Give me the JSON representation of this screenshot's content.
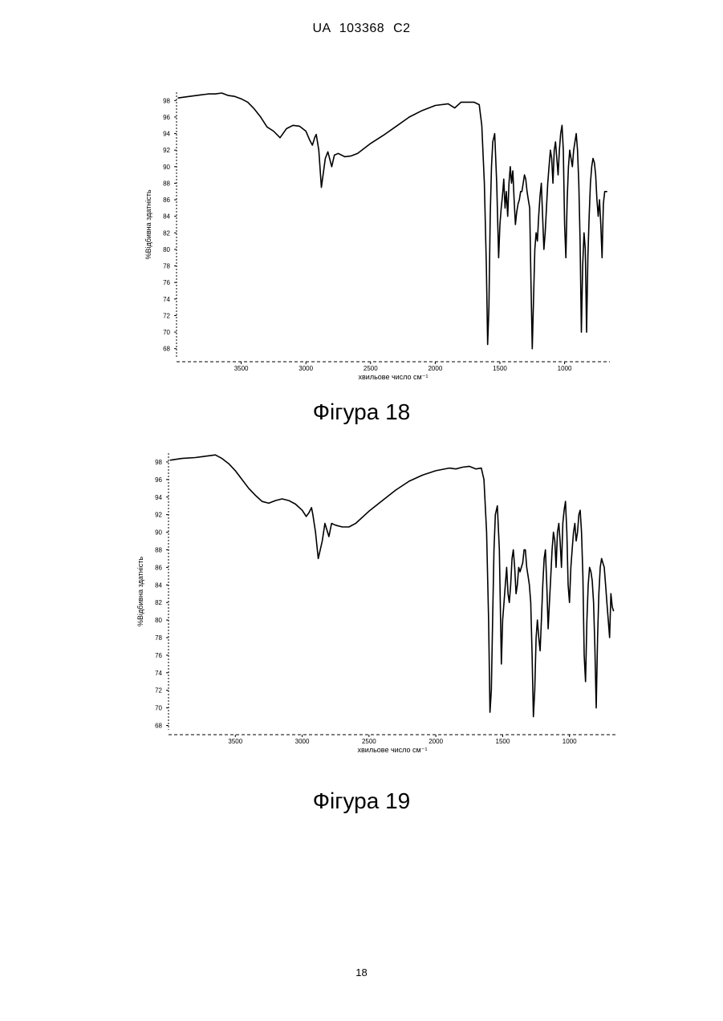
{
  "header": "UA 103368 C2",
  "page_number": "18",
  "figures": [
    {
      "caption": "Фігура 18"
    },
    {
      "caption": "Фігура 19"
    }
  ],
  "chart_data": [
    {
      "type": "line",
      "title": "",
      "xlabel": "хвильове число см⁻¹",
      "ylabel": "%Відбивна здатність",
      "xlim": [
        4000,
        650
      ],
      "ylim": [
        67,
        99
      ],
      "xticks": [
        3500,
        3000,
        2500,
        2000,
        1500,
        1000
      ],
      "yticks": [
        98,
        96,
        94,
        92,
        90,
        88,
        86,
        84,
        82,
        80,
        78,
        76,
        74,
        72,
        70,
        68
      ],
      "ytick_labels": [
        "98",
        "96",
        "94",
        "92",
        "90",
        "88",
        "86",
        "84",
        "82",
        "80",
        "78",
        "76",
        "74",
        "72",
        "70",
        "68"
      ],
      "grid": false,
      "series": [
        {
          "x": [
            3990,
            3900,
            3800,
            3750,
            3700,
            3650,
            3600,
            3550,
            3500,
            3450,
            3400,
            3350,
            3300,
            3250,
            3200,
            3150,
            3100,
            3050,
            3000,
            2970,
            2950,
            2930,
            2920,
            2900,
            2880,
            2850,
            2830,
            2800,
            2780,
            2750,
            2700,
            2650,
            2600,
            2500,
            2400,
            2300,
            2200,
            2100,
            2000,
            1900,
            1850,
            1800,
            1750,
            1700,
            1660,
            1640,
            1620,
            1605,
            1595,
            1585,
            1575,
            1565,
            1555,
            1540,
            1525,
            1510,
            1500,
            1490,
            1480,
            1470,
            1460,
            1450,
            1440,
            1430,
            1420,
            1410,
            1400,
            1390,
            1380,
            1370,
            1360,
            1350,
            1340,
            1330,
            1320,
            1310,
            1300,
            1290,
            1280,
            1270,
            1260,
            1250,
            1240,
            1230,
            1220,
            1210,
            1200,
            1190,
            1180,
            1170,
            1160,
            1150,
            1140,
            1130,
            1120,
            1110,
            1100,
            1090,
            1080,
            1070,
            1060,
            1050,
            1040,
            1030,
            1020,
            1010,
            1000,
            990,
            980,
            970,
            960,
            950,
            940,
            930,
            920,
            910,
            900,
            890,
            880,
            870,
            860,
            850,
            840,
            830,
            820,
            810,
            800,
            790,
            780,
            770,
            760,
            750,
            740,
            730,
            720,
            710,
            700,
            690,
            680,
            670
          ],
          "y": [
            98.3,
            98.5,
            98.7,
            98.8,
            98.8,
            98.9,
            98.6,
            98.5,
            98.2,
            97.8,
            97.0,
            96.0,
            94.8,
            94.3,
            93.5,
            94.6,
            95.0,
            94.9,
            94.3,
            93.2,
            92.6,
            93.6,
            93.9,
            92.0,
            87.5,
            91.0,
            91.8,
            90.0,
            91.4,
            91.6,
            91.2,
            91.3,
            91.6,
            92.8,
            93.8,
            94.9,
            96.0,
            96.8,
            97.4,
            97.6,
            97.1,
            97.8,
            97.8,
            97.8,
            97.5,
            95.0,
            88.0,
            78.0,
            68.5,
            73.0,
            84.0,
            90.0,
            93.0,
            94.0,
            88.0,
            79.0,
            83.0,
            85.0,
            86.5,
            88.5,
            85.0,
            87.0,
            84.0,
            88.0,
            90.0,
            88.0,
            89.5,
            86.0,
            83.0,
            84.5,
            85.5,
            86.0,
            87.0,
            87.0,
            88.0,
            89.0,
            88.5,
            87.0,
            86.0,
            85.0,
            76.0,
            68.0,
            74.0,
            80.0,
            82.0,
            81.0,
            84.0,
            86.5,
            88.0,
            84.0,
            80.0,
            82.0,
            85.0,
            88.0,
            90.0,
            92.0,
            91.0,
            88.0,
            92.0,
            93.0,
            91.0,
            89.0,
            92.0,
            94.0,
            95.0,
            92.0,
            83.0,
            79.0,
            86.0,
            90.0,
            92.0,
            91.0,
            90.0,
            92.0,
            93.0,
            94.0,
            92.0,
            88.0,
            81.0,
            70.0,
            78.0,
            82.0,
            80.0,
            70.0,
            79.0,
            84.0,
            88.0,
            90.0,
            91.0,
            90.5,
            89.0,
            86.0,
            84.0,
            86.0,
            83.0,
            79.0,
            85.5,
            87.0,
            87.0,
            87.0
          ]
        }
      ]
    },
    {
      "type": "line",
      "title": "",
      "xlabel": "хвильове число см⁻¹",
      "ylabel": "%Відбивна здатність",
      "xlim": [
        4000,
        650
      ],
      "ylim": [
        67.5,
        99
      ],
      "xticks": [
        3500,
        3000,
        2500,
        2000,
        1500,
        1000
      ],
      "yticks": [
        98,
        96,
        94,
        92,
        90,
        88,
        86,
        84,
        82,
        80,
        78,
        76,
        74,
        72,
        70,
        68
      ],
      "ytick_labels": [
        "98",
        "96",
        "94",
        "92",
        "90",
        "88",
        "86",
        "84",
        "82",
        "80",
        "78",
        "76",
        "74",
        "72",
        "70",
        "68"
      ],
      "grid": false,
      "series": [
        {
          "x": [
            3990,
            3900,
            3800,
            3750,
            3700,
            3650,
            3600,
            3550,
            3500,
            3450,
            3400,
            3350,
            3300,
            3250,
            3200,
            3150,
            3100,
            3050,
            3000,
            2970,
            2950,
            2930,
            2920,
            2900,
            2880,
            2850,
            2830,
            2800,
            2780,
            2750,
            2700,
            2650,
            2600,
            2500,
            2400,
            2300,
            2200,
            2100,
            2000,
            1900,
            1850,
            1800,
            1750,
            1700,
            1660,
            1640,
            1620,
            1605,
            1595,
            1585,
            1575,
            1565,
            1555,
            1540,
            1525,
            1510,
            1500,
            1490,
            1480,
            1470,
            1460,
            1450,
            1440,
            1430,
            1420,
            1410,
            1400,
            1390,
            1380,
            1370,
            1360,
            1350,
            1340,
            1330,
            1320,
            1310,
            1300,
            1290,
            1280,
            1270,
            1260,
            1250,
            1240,
            1230,
            1220,
            1210,
            1200,
            1190,
            1180,
            1170,
            1160,
            1150,
            1140,
            1130,
            1120,
            1110,
            1100,
            1090,
            1080,
            1070,
            1060,
            1050,
            1040,
            1030,
            1020,
            1010,
            1000,
            990,
            980,
            970,
            960,
            950,
            940,
            930,
            920,
            910,
            900,
            890,
            880,
            870,
            860,
            850,
            840,
            830,
            820,
            810,
            800,
            790,
            780,
            770,
            760,
            750,
            740,
            730,
            720,
            710,
            700,
            690,
            680,
            670
          ],
          "y": [
            98.2,
            98.4,
            98.5,
            98.6,
            98.7,
            98.8,
            98.4,
            97.8,
            97.0,
            96.0,
            95.0,
            94.2,
            93.5,
            93.3,
            93.6,
            93.8,
            93.6,
            93.2,
            92.5,
            91.8,
            92.2,
            92.8,
            92.0,
            90.0,
            87.0,
            89.0,
            91.0,
            89.5,
            91.0,
            90.8,
            90.6,
            90.6,
            91.0,
            92.4,
            93.6,
            94.8,
            95.8,
            96.5,
            97.0,
            97.3,
            97.2,
            97.4,
            97.5,
            97.2,
            97.3,
            96.0,
            90.0,
            80.0,
            69.5,
            72.0,
            80.0,
            88.0,
            92.0,
            93.0,
            88.0,
            75.0,
            80.0,
            82.0,
            84.0,
            86.0,
            83.0,
            82.0,
            84.0,
            87.0,
            88.0,
            86.0,
            83.0,
            84.0,
            86.0,
            85.5,
            86.0,
            86.5,
            88.0,
            88.0,
            86.0,
            85.0,
            84.0,
            82.0,
            76.0,
            69.0,
            72.0,
            78.0,
            80.0,
            78.0,
            76.5,
            80.0,
            84.0,
            87.0,
            88.0,
            84.0,
            79.0,
            82.0,
            85.0,
            88.0,
            90.0,
            89.0,
            86.0,
            90.0,
            91.0,
            89.0,
            86.0,
            91.0,
            92.5,
            93.5,
            90.0,
            84.0,
            82.0,
            86.0,
            88.0,
            90.0,
            91.0,
            89.0,
            90.0,
            92.0,
            92.5,
            90.0,
            85.0,
            76.0,
            73.0,
            80.0,
            84.0,
            86.0,
            85.5,
            84.5,
            82.0,
            77.0,
            70.0,
            78.0,
            83.0,
            86.0,
            87.0,
            86.5,
            86.0,
            84.0,
            82.0,
            80.0,
            78.0,
            83.0,
            81.5,
            81.0
          ]
        }
      ]
    }
  ]
}
